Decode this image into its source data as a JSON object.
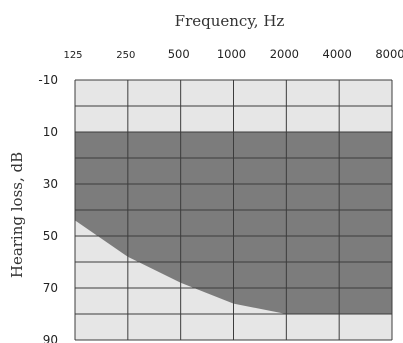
{
  "chart_data": {
    "type": "area",
    "title": "",
    "xlabel": "Frequency,  Hz",
    "ylabel": "Hearing loss, dB",
    "x_scale": "log2",
    "x_ticks": [
      125,
      250,
      500,
      1000,
      2000,
      4000,
      8000
    ],
    "x_tick_labels": [
      "125",
      "250",
      "500",
      "1000",
      "2000",
      "4000",
      "8000"
    ],
    "y_inverted": true,
    "ylim": [
      -10,
      90
    ],
    "y_ticks": [
      -10,
      10,
      30,
      50,
      70,
      90
    ],
    "y_tick_labels": [
      "-10",
      "10",
      "30",
      "50",
      "70",
      "90"
    ],
    "grid": true,
    "x": [
      125,
      250,
      500,
      1000,
      2000,
      4000,
      8000
    ],
    "series": [
      {
        "role": "upper_boundary",
        "values": [
          10,
          10,
          10,
          10,
          10,
          10,
          10
        ]
      },
      {
        "role": "lower_boundary",
        "values": [
          44,
          58,
          68,
          76,
          80,
          80,
          80
        ]
      }
    ],
    "colors": {
      "background": "#e6e6e6",
      "band": "#7c7c7c",
      "grid": "#3c3c3c"
    }
  }
}
